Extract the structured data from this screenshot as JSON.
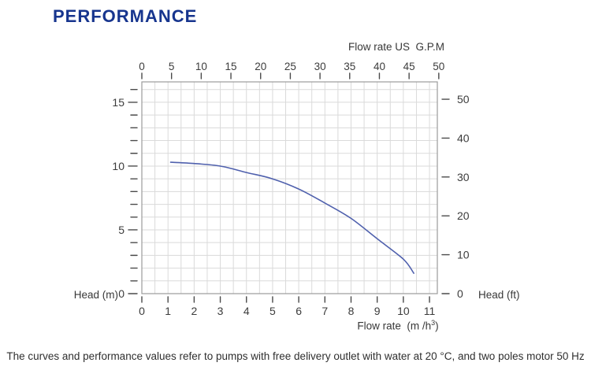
{
  "page": {
    "title": "PERFORMANCE",
    "footer": "The curves and performance values refer to pumps with free delivery outlet with water at 20 °C, and two poles motor 50 Hz"
  },
  "colors": {
    "title": "#17358e",
    "curve": "#4f60ad",
    "grid": "#dadada",
    "border": "#9b9b9b",
    "tick": "#4a4a4a",
    "tick_label": "#3c3c3c",
    "axis_label": "#383838",
    "footer_text": "#2f2f2f"
  },
  "chart_data": {
    "type": "line",
    "title": "",
    "x_axis_top": {
      "label": "Flow rate US  G.P.M",
      "unit": "US GPM",
      "ticks": [
        0,
        5,
        10,
        15,
        20,
        25,
        30,
        35,
        40,
        45,
        50
      ],
      "m3h_per_gpm": 0.2271
    },
    "x_axis_bottom": {
      "label_pre": "Flow rate  (m /h",
      "label_sup": "3",
      "label_post": ")",
      "unit": "m3/h",
      "ticks": [
        0,
        1,
        2,
        3,
        4,
        5,
        6,
        7,
        8,
        9,
        10,
        11
      ],
      "range": [
        0,
        11.3
      ]
    },
    "y_axis_left": {
      "label": "Head (m)",
      "unit": "m",
      "labeled_ticks": [
        0,
        5,
        10,
        15
      ],
      "minor_tick_step": 1,
      "range": [
        0,
        16.6
      ]
    },
    "y_axis_right": {
      "label": "Head (ft)",
      "unit": "ft",
      "ticks": [
        0,
        10,
        20,
        30,
        40,
        50
      ],
      "m_per_ft": 0.3048
    },
    "grid": {
      "x_step_m3h": 0.5,
      "y_step_m": 1,
      "grid_on": true
    },
    "series": [
      {
        "name": "head-vs-flow-curve",
        "color": "#4f60ad",
        "x_m3h": [
          1.1,
          2,
          3,
          4,
          5,
          6,
          7,
          8,
          9,
          10,
          10.4
        ],
        "y_m": [
          10.3,
          10.2,
          10.0,
          9.5,
          9.0,
          8.2,
          7.1,
          5.9,
          4.3,
          2.7,
          1.6
        ]
      }
    ]
  }
}
